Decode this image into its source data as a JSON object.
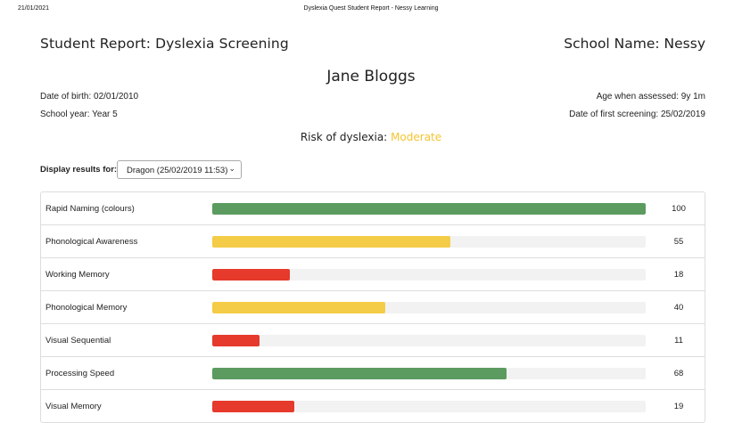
{
  "print_header": {
    "date": "21/01/2021",
    "title": "Dyslexia Quest Student Report - Nessy Learning"
  },
  "report": {
    "title": "Student Report: Dyslexia Screening",
    "school_name": "School Name: Nessy",
    "student_name": "Jane Bloggs",
    "date_of_birth": "Date of birth: 02/01/2010",
    "age_assessed": "Age when assessed: 9y 1m",
    "school_year": "School year: Year 5",
    "first_screening": "Date of first screening: 25/02/2019",
    "risk_label": "Risk of dyslexia:",
    "risk_level": "Moderate"
  },
  "display": {
    "label": "Display results for:",
    "selected": "Dragon (25/02/2019 11:53)",
    "chevron_icon": "chevron-down-icon"
  },
  "colors": {
    "green": "#5b9b5f",
    "yellow": "#f4cc47",
    "red": "#e53a2c",
    "track": "#f2f2f2",
    "moderate": "#f4c430"
  },
  "results": [
    {
      "label": "Rapid Naming (colours)",
      "value": 100,
      "level": "green"
    },
    {
      "label": "Phonological Awareness",
      "value": 55,
      "level": "yellow"
    },
    {
      "label": "Working Memory",
      "value": 18,
      "level": "red"
    },
    {
      "label": "Phonological Memory",
      "value": 40,
      "level": "yellow"
    },
    {
      "label": "Visual Sequential",
      "value": 11,
      "level": "red"
    },
    {
      "label": "Processing Speed",
      "value": 68,
      "level": "green"
    },
    {
      "label": "Visual Memory",
      "value": 19,
      "level": "red"
    }
  ]
}
